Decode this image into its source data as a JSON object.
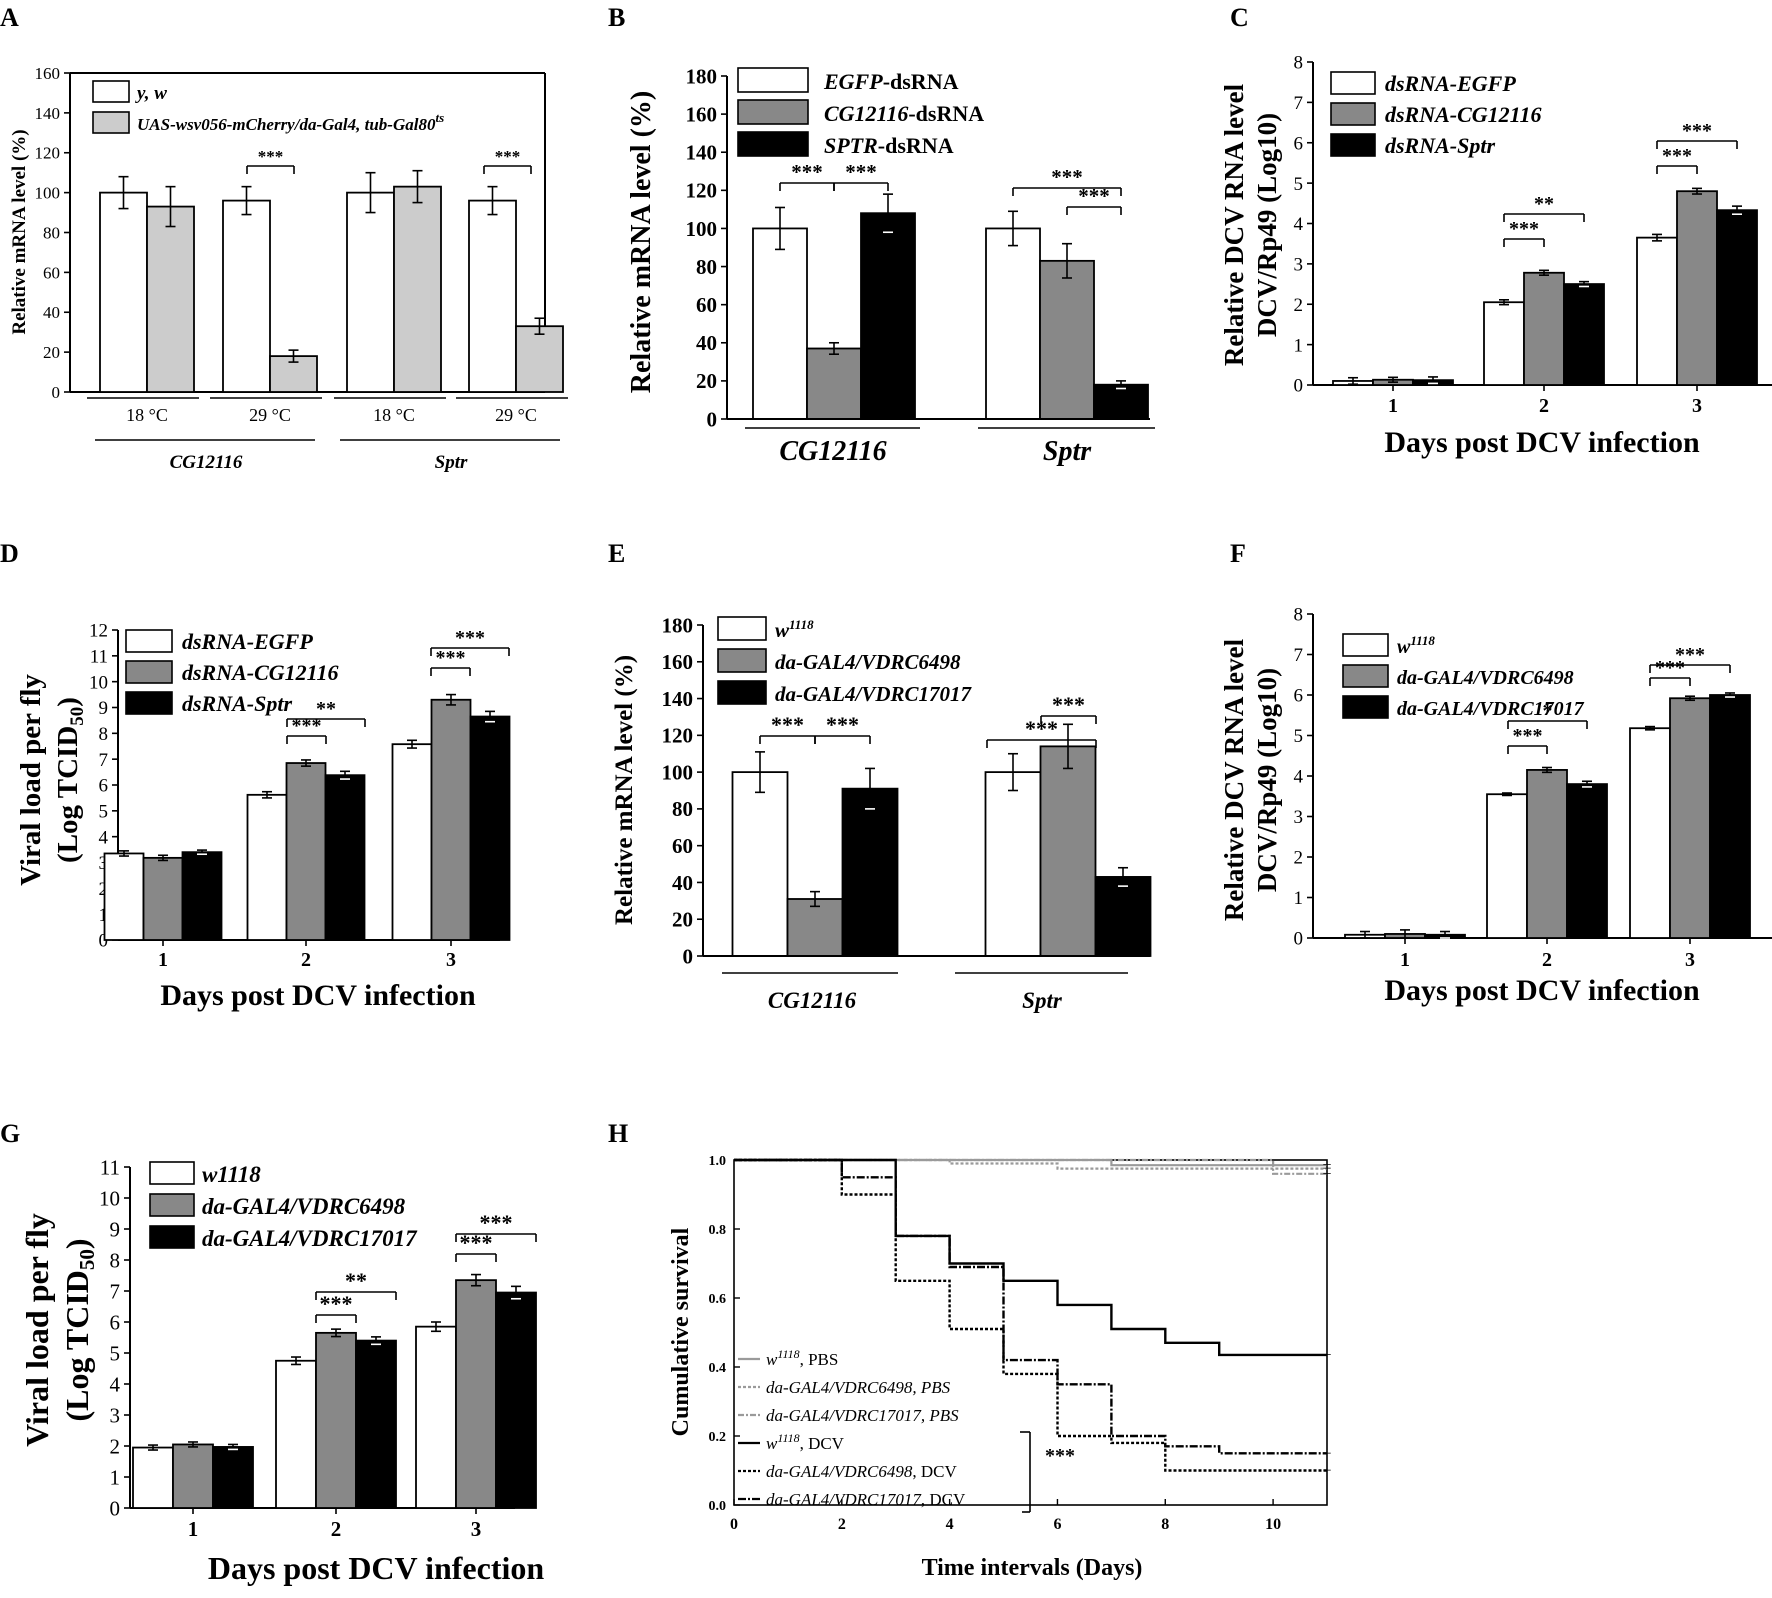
{
  "chart_data": [
    {
      "id": "A",
      "type": "bar",
      "letter": "A",
      "ylabel": "Relative mRNA level (%)",
      "yticks": [
        0,
        20,
        40,
        60,
        80,
        100,
        120,
        140,
        160
      ],
      "legend": [
        {
          "label": "y, w"
        },
        {
          "label": "UAS-wsv056-mCherry/da-Gal4, tub-Gal80",
          "sup": "ts"
        }
      ],
      "groups": [
        {
          "label": "18 °C"
        },
        {
          "label": "29 °C"
        },
        {
          "label": "18 °C"
        },
        {
          "label": "29 °C"
        }
      ],
      "genes": [
        "CG12116",
        "Sptr"
      ],
      "series": [
        {
          "name": "y, w",
          "fill": "#ffffff",
          "values": [
            100,
            96,
            100,
            96
          ],
          "err": [
            8,
            7,
            10,
            7
          ]
        },
        {
          "name": "UAS-wsv056-mCherry/da-Gal4, tub-Gal80ts",
          "fill": "#cccccc",
          "values": [
            93,
            18,
            103,
            33
          ],
          "err": [
            10,
            3,
            8,
            4
          ]
        }
      ],
      "sig": [
        {
          "label": "***"
        },
        {
          "label": "***"
        }
      ]
    },
    {
      "id": "B",
      "type": "bar",
      "letter": "B",
      "ylabel": "Relative mRNA level (%)",
      "yticks": [
        0,
        20,
        40,
        60,
        80,
        100,
        120,
        140,
        160,
        180
      ],
      "legend": [
        {
          "it": "EGFP",
          "rest": "-dsRNA"
        },
        {
          "it": "CG12116",
          "rest": "-dsRNA"
        },
        {
          "it": "SPTR",
          "rest": "-dsRNA"
        }
      ],
      "genes": [
        "CG12116",
        "Sptr"
      ],
      "series": [
        {
          "name": "EGFP-dsRNA",
          "fill": "#ffffff",
          "values": [
            100,
            100
          ],
          "err": [
            11,
            9
          ]
        },
        {
          "name": "CG12116-dsRNA",
          "fill": "#888888",
          "values": [
            37,
            83
          ],
          "err": [
            3,
            9
          ]
        },
        {
          "name": "SPTR-dsRNA",
          "fill": "#000000",
          "values": [
            108,
            18
          ],
          "err": [
            10,
            2
          ]
        }
      ],
      "sig": [
        {
          "label": "***"
        },
        {
          "label": "***"
        },
        {
          "label": "***"
        },
        {
          "label": "***"
        }
      ]
    },
    {
      "id": "C",
      "type": "bar",
      "letter": "C",
      "ylabel1": "Relative DCV RNA level",
      "ylabel2": "DCV/Rp49 (Log10)",
      "xlabel": "Days post DCV infection",
      "yticks": [
        0,
        1,
        2,
        3,
        4,
        5,
        6,
        7,
        8
      ],
      "categories": [
        "1",
        "2",
        "3"
      ],
      "legend": [
        "dsRNA-EGFP",
        "dsRNA-CG12116",
        "dsRNA-Sptr"
      ],
      "series": [
        {
          "name": "dsRNA-EGFP",
          "fill": "#ffffff",
          "values": [
            0.1,
            2.05,
            3.65
          ],
          "err": [
            0.08,
            0.06,
            0.08
          ]
        },
        {
          "name": "dsRNA-CG12116",
          "fill": "#888888",
          "values": [
            0.13,
            2.78,
            4.8
          ],
          "err": [
            0.06,
            0.06,
            0.07
          ]
        },
        {
          "name": "dsRNA-Sptr",
          "fill": "#000000",
          "values": [
            0.12,
            2.5,
            4.33
          ],
          "err": [
            0.08,
            0.06,
            0.1
          ]
        }
      ],
      "sig": [
        {
          "label": "***"
        },
        {
          "label": "**"
        },
        {
          "label": "***"
        },
        {
          "label": "***"
        }
      ]
    },
    {
      "id": "D",
      "type": "bar",
      "letter": "D",
      "ylabel1": "Viral load per fly",
      "ylabel2": "(Log TCID",
      "ylabel2sub": "50",
      "ylabel2end": ")",
      "xlabel": "Days post DCV infection",
      "yticks": [
        0,
        1,
        2,
        3,
        4,
        5,
        6,
        7,
        8,
        9,
        10,
        11,
        12
      ],
      "categories": [
        "1",
        "2",
        "3"
      ],
      "legend": [
        "dsRNA-EGFP",
        "dsRNA-CG12116",
        "dsRNA-Sptr"
      ],
      "series": [
        {
          "name": "dsRNA-EGFP",
          "fill": "#ffffff",
          "values": [
            3.35,
            5.62,
            7.58
          ],
          "err": [
            0.1,
            0.12,
            0.15
          ]
        },
        {
          "name": "dsRNA-CG12116",
          "fill": "#888888",
          "values": [
            3.18,
            6.85,
            9.3
          ],
          "err": [
            0.1,
            0.12,
            0.2
          ]
        },
        {
          "name": "dsRNA-Sptr",
          "fill": "#000000",
          "values": [
            3.4,
            6.38,
            8.65
          ],
          "err": [
            0.08,
            0.15,
            0.2
          ]
        }
      ],
      "sig": [
        {
          "label": "***"
        },
        {
          "label": "**"
        },
        {
          "label": "***"
        },
        {
          "label": "***"
        }
      ]
    },
    {
      "id": "E",
      "type": "bar",
      "letter": "E",
      "ylabel": "Relative mRNA level (%)",
      "yticks": [
        0,
        20,
        40,
        60,
        80,
        100,
        120,
        140,
        160,
        180
      ],
      "legend": [
        {
          "base": "w",
          "sup": "1118"
        },
        {
          "base": "da-GAL4/VDRC6498"
        },
        {
          "base": "da-GAL4/VDRC17017"
        }
      ],
      "genes": [
        "CG12116",
        "Sptr"
      ],
      "series": [
        {
          "name": "w1118",
          "fill": "#ffffff",
          "values": [
            100,
            100
          ],
          "err": [
            11,
            10
          ]
        },
        {
          "name": "da-GAL4/VDRC6498",
          "fill": "#888888",
          "values": [
            31,
            114
          ],
          "err": [
            4,
            12
          ]
        },
        {
          "name": "da-GAL4/VDRC17017",
          "fill": "#000000",
          "values": [
            91,
            43
          ],
          "err": [
            11,
            5
          ]
        }
      ],
      "sig": [
        {
          "label": "***"
        },
        {
          "label": "***"
        },
        {
          "label": "***"
        },
        {
          "label": "***"
        }
      ]
    },
    {
      "id": "F",
      "type": "bar",
      "letter": "F",
      "ylabel1": "Relative DCV RNA level",
      "ylabel2": "DCV/Rp49 (Log10)",
      "xlabel": "Days post DCV infection",
      "yticks": [
        0,
        1,
        2,
        3,
        4,
        5,
        6,
        7,
        8
      ],
      "categories": [
        "1",
        "2",
        "3"
      ],
      "legend": [
        {
          "base": "w",
          "sup": "1118"
        },
        {
          "base": "da-GAL4/VDRC6498"
        },
        {
          "base": "da-GAL4/VDRC17017"
        }
      ],
      "series": [
        {
          "name": "w1118",
          "fill": "#ffffff",
          "values": [
            0.08,
            3.55,
            5.18
          ],
          "err": [
            0.08,
            0.03,
            0.04
          ]
        },
        {
          "name": "da-GAL4/VDRC6498",
          "fill": "#888888",
          "values": [
            0.1,
            4.15,
            5.92
          ],
          "err": [
            0.1,
            0.06,
            0.05
          ]
        },
        {
          "name": "da-GAL4/VDRC17017",
          "fill": "#000000",
          "values": [
            0.08,
            3.8,
            6.0
          ],
          "err": [
            0.08,
            0.07,
            0.05
          ]
        }
      ],
      "sig": [
        {
          "label": "***"
        },
        {
          "label": "*"
        },
        {
          "label": "***"
        },
        {
          "label": "***"
        }
      ]
    },
    {
      "id": "G",
      "type": "bar",
      "letter": "G",
      "ylabel1": "Viral load per fly",
      "ylabel2": "(Log TCID",
      "ylabel2sub": "50",
      "ylabel2end": ")",
      "xlabel": "Days post DCV infection",
      "yticks": [
        0,
        1,
        2,
        3,
        4,
        5,
        6,
        7,
        8,
        9,
        10,
        11
      ],
      "categories": [
        "1",
        "2",
        "3"
      ],
      "legend": [
        "w1118",
        "da-GAL4/VDRC6498",
        "da-GAL4/VDRC17017"
      ],
      "series": [
        {
          "name": "w1118",
          "fill": "#ffffff",
          "values": [
            1.95,
            4.75,
            5.85
          ],
          "err": [
            0.08,
            0.12,
            0.15
          ]
        },
        {
          "name": "da-GAL4/VDRC6498",
          "fill": "#888888",
          "values": [
            2.05,
            5.65,
            7.35
          ],
          "err": [
            0.08,
            0.12,
            0.18
          ]
        },
        {
          "name": "da-GAL4/VDRC17017",
          "fill": "#000000",
          "values": [
            1.97,
            5.4,
            6.95
          ],
          "err": [
            0.08,
            0.12,
            0.2
          ]
        }
      ],
      "sig": [
        {
          "label": "***"
        },
        {
          "label": "**"
        },
        {
          "label": "***"
        },
        {
          "label": "***"
        }
      ]
    },
    {
      "id": "H",
      "type": "line",
      "letter": "H",
      "ylabel": "Cumulative survival",
      "xlabel": "Time intervals (Days)",
      "xticks": [
        0,
        2,
        4,
        6,
        8,
        10
      ],
      "yticks": [
        "0.0",
        "0.2",
        "0.4",
        "0.6",
        "0.8",
        "1.0"
      ],
      "xlim": [
        0,
        11
      ],
      "ylim": [
        0,
        1
      ],
      "sig": "***",
      "series": [
        {
          "name": "w1118, PBS",
          "legend": {
            "base": "w",
            "sup": "1118",
            "rest": ", PBS"
          },
          "color": "#9a9a9a",
          "dash": "",
          "width": 2.2,
          "points": [
            [
              0,
              1.0
            ],
            [
              7,
              1.0
            ],
            [
              7,
              0.985
            ],
            [
              11,
              0.985
            ]
          ]
        },
        {
          "name": "da-GAL4/VDRC6498, PBS",
          "legend": {
            "it": "da-GAL4/VDRC6498, PBS"
          },
          "color": "#9a9a9a",
          "dash": "3,2",
          "width": 2.2,
          "points": [
            [
              0,
              1.0
            ],
            [
              4,
              1.0
            ],
            [
              4,
              0.99
            ],
            [
              6,
              0.99
            ],
            [
              6,
              0.975
            ],
            [
              11,
              0.975
            ]
          ]
        },
        {
          "name": "da-GAL4/VDRC17017, PBS",
          "legend": {
            "it": "da-GAL4/VDRC17017, PBS"
          },
          "color": "#9a9a9a",
          "dash": "6,2,2,2",
          "width": 2.2,
          "points": [
            [
              0,
              1.0
            ],
            [
              10,
              1.0
            ],
            [
              10,
              0.96
            ],
            [
              11,
              0.96
            ]
          ]
        },
        {
          "name": "w1118, DCV",
          "legend": {
            "base": "w",
            "sup": "1118",
            "rest": ", DCV"
          },
          "color": "#000000",
          "dash": "",
          "width": 2.4,
          "points": [
            [
              0,
              1.0
            ],
            [
              3,
              1.0
            ],
            [
              3,
              0.78
            ],
            [
              4,
              0.78
            ],
            [
              4,
              0.7
            ],
            [
              5,
              0.7
            ],
            [
              5,
              0.65
            ],
            [
              6,
              0.65
            ],
            [
              6,
              0.58
            ],
            [
              7,
              0.58
            ],
            [
              7,
              0.51
            ],
            [
              8,
              0.51
            ],
            [
              8,
              0.47
            ],
            [
              9,
              0.47
            ],
            [
              9,
              0.435
            ],
            [
              11,
              0.435
            ]
          ]
        },
        {
          "name": "da-GAL4/VDRC6498, DCV",
          "legend": {
            "it": "da-GAL4/VDRC6498",
            "rest": ", DCV"
          },
          "color": "#000000",
          "dash": "3,2",
          "width": 2.4,
          "points": [
            [
              0,
              1.0
            ],
            [
              2,
              1.0
            ],
            [
              2,
              0.9
            ],
            [
              3,
              0.9
            ],
            [
              3,
              0.65
            ],
            [
              4,
              0.65
            ],
            [
              4,
              0.51
            ],
            [
              5,
              0.51
            ],
            [
              5,
              0.38
            ],
            [
              6,
              0.38
            ],
            [
              6,
              0.2
            ],
            [
              7,
              0.2
            ],
            [
              7,
              0.18
            ],
            [
              8,
              0.18
            ],
            [
              8,
              0.1
            ],
            [
              11,
              0.1
            ]
          ]
        },
        {
          "name": "da-GAL4/VDRC17017, DCV",
          "legend": {
            "it": "da-GAL4/VDRC17017",
            "rest": ", DCV"
          },
          "color": "#000000",
          "dash": "8,2,2,2",
          "width": 2.4,
          "points": [
            [
              0,
              1.0
            ],
            [
              2,
              1.0
            ],
            [
              2,
              0.95
            ],
            [
              3,
              0.95
            ],
            [
              3,
              0.78
            ],
            [
              4,
              0.78
            ],
            [
              4,
              0.69
            ],
            [
              5,
              0.69
            ],
            [
              5,
              0.42
            ],
            [
              6,
              0.42
            ],
            [
              6,
              0.35
            ],
            [
              7,
              0.35
            ],
            [
              7,
              0.2
            ],
            [
              8,
              0.2
            ],
            [
              8,
              0.17
            ],
            [
              9,
              0.17
            ],
            [
              9,
              0.15
            ],
            [
              11,
              0.15
            ]
          ]
        }
      ]
    }
  ]
}
